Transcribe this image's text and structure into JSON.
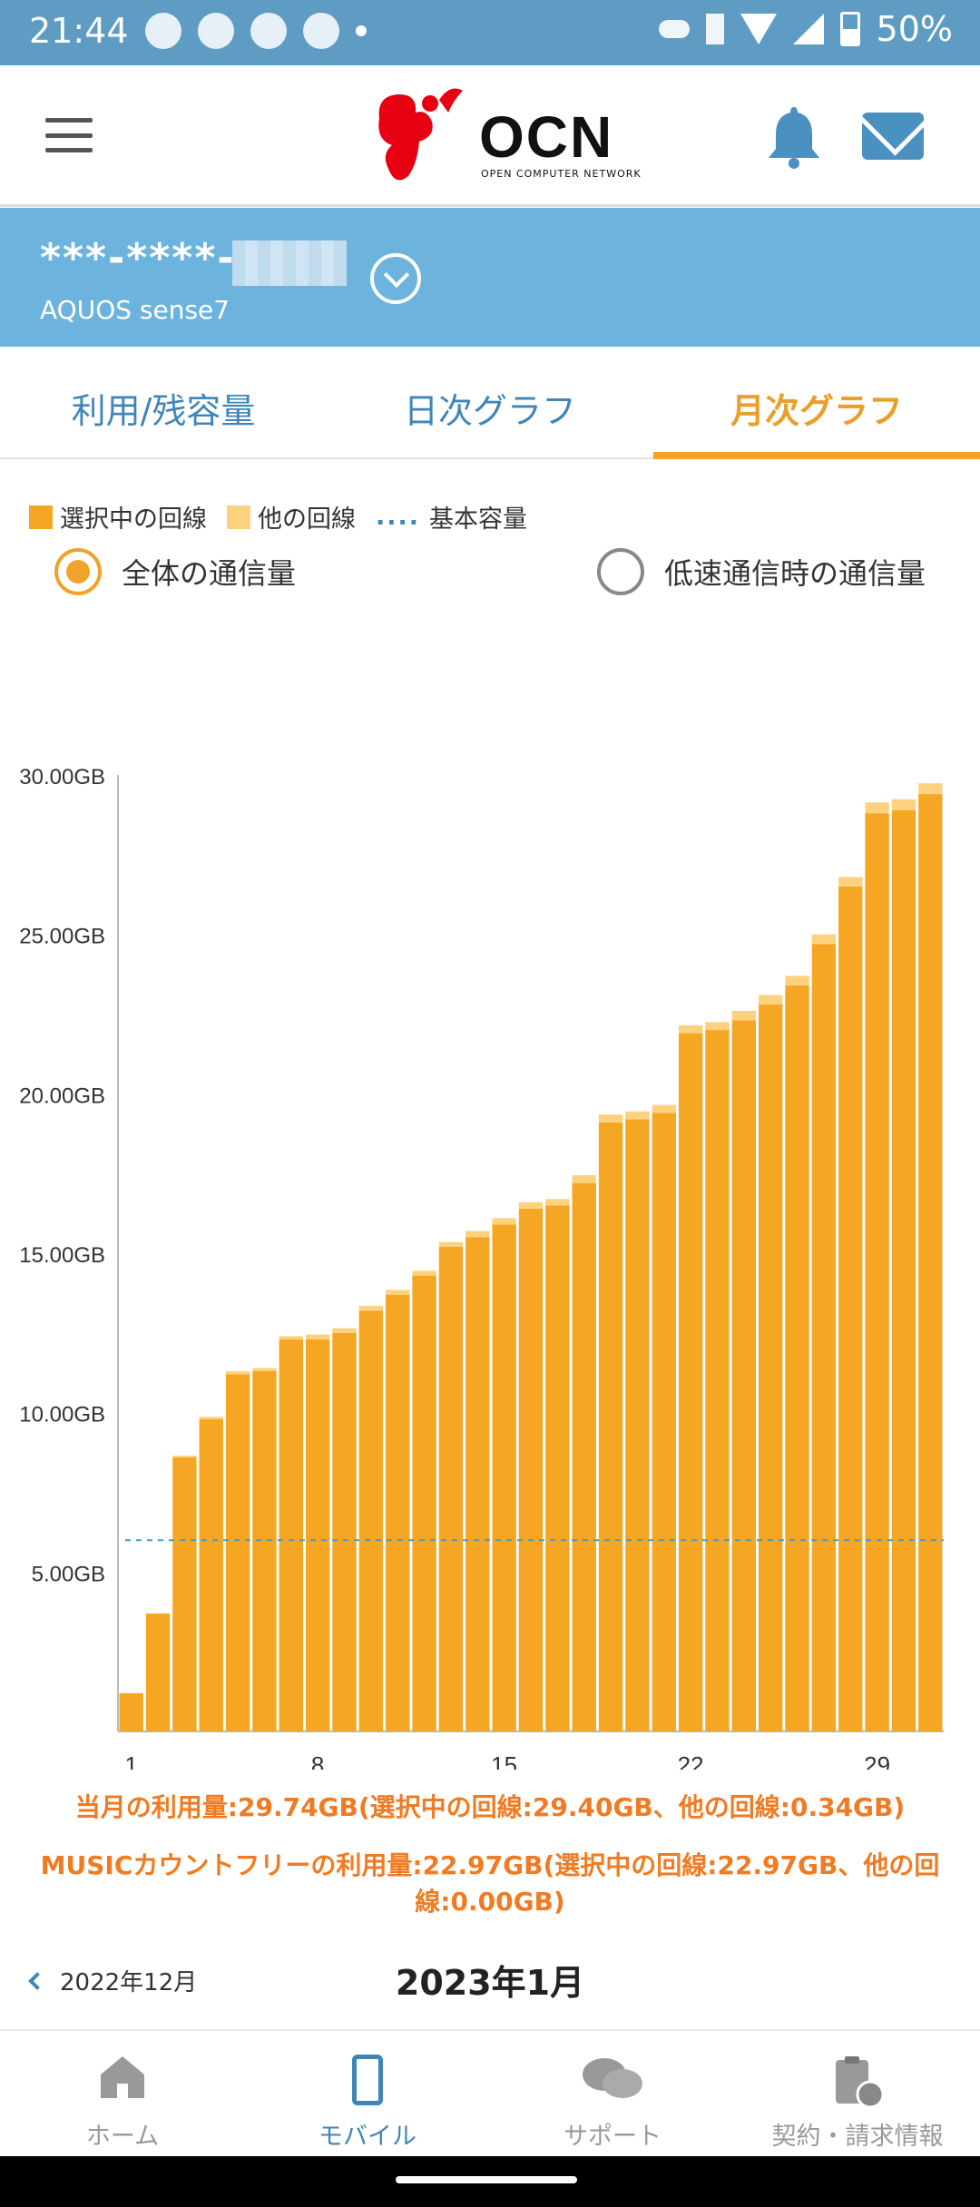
{
  "status_bar": {
    "time": "21:44",
    "battery": "50%"
  },
  "app": {
    "logo_text": "OCN",
    "logo_sub": "OPEN COMPUTER NETWORK"
  },
  "account": {
    "number": "***-****-",
    "model": "AQUOS sense7"
  },
  "tabs": [
    {
      "label": "利用/残容量",
      "active": false
    },
    {
      "label": "日次グラフ",
      "active": false
    },
    {
      "label": "月次グラフ",
      "active": true
    }
  ],
  "legend": {
    "selected": "選択中の回線",
    "other": "他の回線",
    "dots": "....",
    "base": "基本容量"
  },
  "radios": {
    "total": "全体の通信量",
    "lowspeed": "低速通信時の通信量",
    "selected": "total"
  },
  "colors": {
    "selected_line": "#f5a623",
    "other_line": "#fdd27f",
    "base_capacity": "#3f9fd0",
    "accent": "#f0a32a",
    "brand_blue": "#6cb4dd"
  },
  "chart_data": {
    "type": "bar",
    "stacked": true,
    "x": [
      1,
      2,
      3,
      4,
      5,
      6,
      7,
      8,
      9,
      10,
      11,
      12,
      13,
      14,
      15,
      16,
      17,
      18,
      19,
      20,
      21,
      22,
      23,
      24,
      25,
      26,
      27,
      28,
      29,
      30,
      31
    ],
    "x_tick_labels": [
      "1",
      "8",
      "15",
      "22",
      "29"
    ],
    "y_tick_labels": [
      "5.00GB",
      "10.00GB",
      "15.00GB",
      "20.00GB",
      "25.00GB",
      "30.00GB"
    ],
    "ylim": [
      0,
      30
    ],
    "series": [
      {
        "name": "選択中の回線",
        "values": [
          1.2,
          3.7,
          8.6,
          9.8,
          11.2,
          11.3,
          12.3,
          12.3,
          12.5,
          13.2,
          13.7,
          14.3,
          15.2,
          15.5,
          15.9,
          16.4,
          16.5,
          17.2,
          19.1,
          19.2,
          19.4,
          21.9,
          22.0,
          22.3,
          22.8,
          23.4,
          24.7,
          26.5,
          28.8,
          28.9,
          29.4
        ]
      },
      {
        "name": "他の回線",
        "values": [
          0,
          0,
          0.05,
          0.07,
          0.1,
          0.1,
          0.1,
          0.15,
          0.15,
          0.15,
          0.15,
          0.15,
          0.15,
          0.2,
          0.2,
          0.2,
          0.2,
          0.25,
          0.25,
          0.25,
          0.25,
          0.25,
          0.25,
          0.3,
          0.3,
          0.3,
          0.3,
          0.3,
          0.34,
          0.34,
          0.34
        ]
      }
    ],
    "base_capacity": 6.0
  },
  "summary": {
    "usage": "当月の利用量:29.74GB(選択中の回線:29.40GB、他の回線:0.34GB)",
    "music_line1": "MUSICカウントフリーの利用量:22.97GB(選択中の回線:22.97GB、他の回",
    "music_line2": "線:0.00GB)"
  },
  "month_nav": {
    "prev": "2022年12月",
    "current": "2023年1月"
  },
  "bottom_nav": [
    {
      "label": "ホーム",
      "icon": "home-icon"
    },
    {
      "label": "モバイル",
      "icon": "phone-icon",
      "active": true
    },
    {
      "label": "サポート",
      "icon": "chat-icon"
    },
    {
      "label": "契約・請求情報",
      "icon": "invoice-icon"
    }
  ]
}
